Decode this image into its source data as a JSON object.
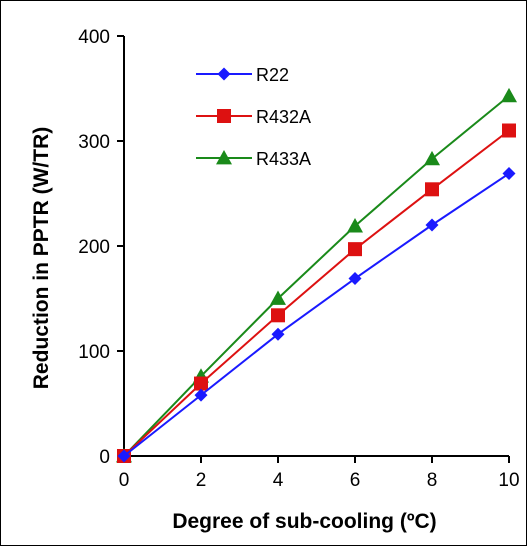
{
  "chart_data": {
    "type": "line",
    "title": "",
    "xlabel": "Degree of sub-cooling (ºC)",
    "ylabel": "Reduction in PPTR (W/TR)",
    "x": [
      0,
      2,
      4,
      6,
      8,
      10
    ],
    "xlim": [
      0,
      10
    ],
    "ylim": [
      0,
      400
    ],
    "xticks": [
      "0",
      "2",
      "4",
      "6",
      "8",
      "10"
    ],
    "yticks": [
      "0",
      "100",
      "200",
      "300",
      "400"
    ],
    "grid": false,
    "legend_position": "top-left",
    "series": [
      {
        "name": "R22",
        "color": "#1a1aff",
        "marker": "diamond",
        "values": [
          0,
          58,
          116,
          169,
          220,
          269
        ]
      },
      {
        "name": "R432A",
        "color": "#dd1111",
        "marker": "square",
        "values": [
          0,
          69,
          134,
          197,
          254,
          310
        ]
      },
      {
        "name": "R433A",
        "color": "#1a8a1a",
        "marker": "triangle",
        "values": [
          0,
          76,
          150,
          219,
          283,
          343
        ]
      }
    ]
  }
}
